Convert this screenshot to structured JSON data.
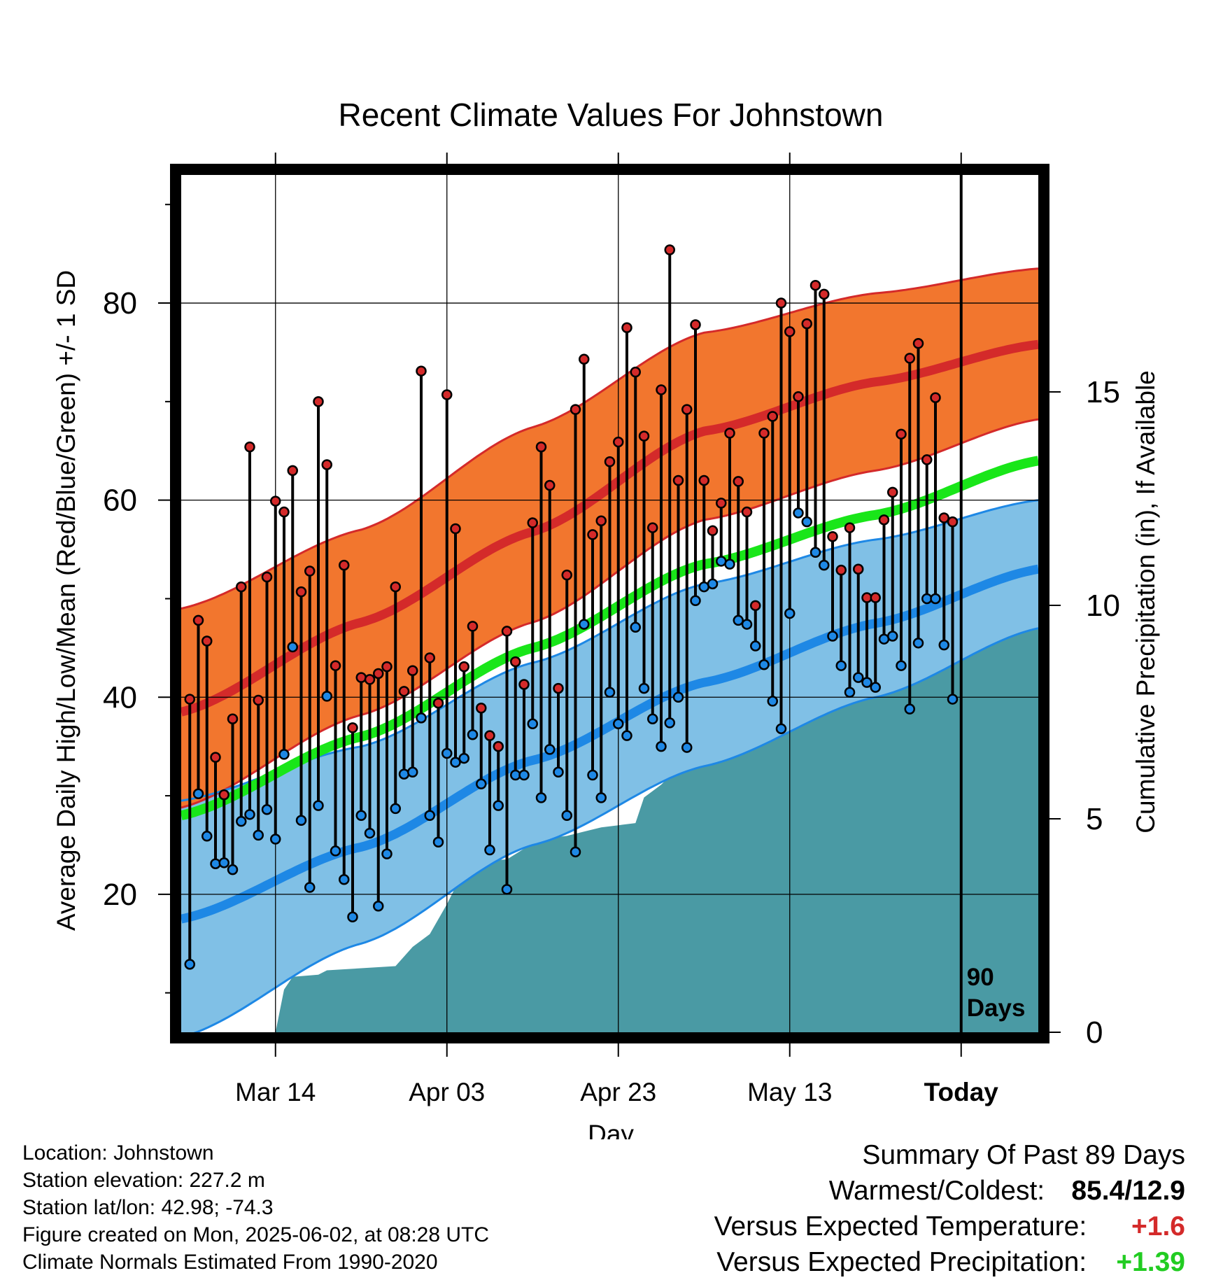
{
  "chart_data": {
    "type": "line",
    "title": "Recent Climate Values For Johnstown",
    "xlabel": "Day",
    "ylabel": "Average Daily High/Low/Mean (Red/Blue/Green) +/- 1 SD",
    "y2label": "Cumulative Precipitation (in), If Available",
    "x_tick_labels": [
      "Mar 14",
      "Apr 03",
      "Apr 23",
      "May 13",
      "Today"
    ],
    "x_tick_days": [
      10,
      30,
      50,
      70,
      90
    ],
    "x_range_days": [
      -1,
      99
    ],
    "ylim": [
      6,
      93
    ],
    "yticks": [
      20,
      40,
      60,
      80
    ],
    "y2lim": [
      0,
      20
    ],
    "y2ticks": [
      0,
      5,
      10,
      15
    ],
    "today_label": "90\nDays",
    "grid": true,
    "normals": {
      "high_mean": [
        [
          -1,
          38.5
        ],
        [
          20,
          47.6
        ],
        [
          40,
          56.8
        ],
        [
          60,
          67.0
        ],
        [
          80,
          72.0
        ],
        [
          99,
          75.8
        ]
      ],
      "high_upper": [
        [
          -1,
          49.0
        ],
        [
          20,
          57.0
        ],
        [
          40,
          67.4
        ],
        [
          60,
          77.0
        ],
        [
          80,
          81.0
        ],
        [
          99,
          83.5
        ]
      ],
      "high_lower": [
        [
          -1,
          28.8
        ],
        [
          20,
          38.2
        ],
        [
          40,
          47.6
        ],
        [
          60,
          58.0
        ],
        [
          80,
          63.0
        ],
        [
          99,
          68.2
        ]
      ],
      "mean": [
        [
          -1,
          28.0
        ],
        [
          20,
          36.0
        ],
        [
          40,
          45.0
        ],
        [
          60,
          53.5
        ],
        [
          80,
          58.5
        ],
        [
          99,
          64.0
        ]
      ],
      "low_mean": [
        [
          -1,
          17.5
        ],
        [
          20,
          24.8
        ],
        [
          40,
          33.6
        ],
        [
          60,
          41.5
        ],
        [
          80,
          47.5
        ],
        [
          99,
          53.0
        ]
      ],
      "low_upper": [
        [
          -1,
          29.5
        ],
        [
          20,
          35.0
        ],
        [
          40,
          43.5
        ],
        [
          60,
          51.5
        ],
        [
          80,
          56.0
        ],
        [
          99,
          60.0
        ]
      ],
      "low_lower": [
        [
          -1,
          5.5
        ],
        [
          20,
          15.0
        ],
        [
          40,
          25.0
        ],
        [
          60,
          33.0
        ],
        [
          80,
          40.0
        ],
        [
          99,
          47.0
        ]
      ]
    },
    "daily_high": [
      39.8,
      47.8,
      45.7,
      33.9,
      30.1,
      37.8,
      51.2,
      65.4,
      39.7,
      52.2,
      59.9,
      58.8,
      63.0,
      50.7,
      52.8,
      70.0,
      63.6,
      43.2,
      53.4,
      36.9,
      42.0,
      41.8,
      42.4,
      43.1,
      51.2,
      40.6,
      42.7,
      73.1,
      44.0,
      39.4,
      70.7,
      57.1,
      43.1,
      47.2,
      38.9,
      36.1,
      35.0,
      46.7,
      43.6,
      41.3,
      57.7,
      65.4,
      61.5,
      40.9,
      52.4,
      69.2,
      74.3,
      56.5,
      57.9,
      63.9,
      65.9,
      77.5,
      73.0,
      66.5,
      57.2,
      71.2,
      85.4,
      62.0,
      69.2,
      77.8,
      62.0,
      56.9,
      59.7,
      66.8,
      61.9,
      58.8,
      49.3,
      66.8,
      68.5,
      80.0,
      77.1,
      70.5,
      77.9,
      81.8,
      80.9,
      56.3,
      52.9,
      57.2,
      53.0,
      50.1,
      50.1,
      58.0,
      60.8,
      66.7,
      74.4,
      75.9,
      64.1,
      70.4,
      58.2,
      57.8
    ],
    "daily_low": [
      12.9,
      30.2,
      25.9,
      23.1,
      23.2,
      22.5,
      27.4,
      28.1,
      26.0,
      28.6,
      25.6,
      34.2,
      45.1,
      27.5,
      20.7,
      29.0,
      40.1,
      24.4,
      21.5,
      17.7,
      28.0,
      26.2,
      18.8,
      24.1,
      28.7,
      32.2,
      32.4,
      37.9,
      28.0,
      25.3,
      34.3,
      33.4,
      33.8,
      36.2,
      31.2,
      24.5,
      29.0,
      20.5,
      32.1,
      32.1,
      37.3,
      29.8,
      34.7,
      32.4,
      28.0,
      24.3,
      47.4,
      32.1,
      29.8,
      40.5,
      37.3,
      36.1,
      47.1,
      40.9,
      37.8,
      35.0,
      37.4,
      40.0,
      34.9,
      49.8,
      51.2,
      51.5,
      53.8,
      53.5,
      47.8,
      47.4,
      45.2,
      43.3,
      39.6,
      36.8,
      48.5,
      58.7,
      57.8,
      54.7,
      53.4,
      46.2,
      43.2,
      40.5,
      42.0,
      41.5,
      41.0,
      45.9,
      46.2,
      43.2,
      38.8,
      45.5,
      50.0,
      50.0,
      45.3,
      39.8
    ],
    "cumulative_precip": [
      [
        10,
        0.0
      ],
      [
        11,
        1.0
      ],
      [
        12,
        1.3
      ],
      [
        15,
        1.35
      ],
      [
        16,
        1.45
      ],
      [
        24,
        1.55
      ],
      [
        26,
        2.0
      ],
      [
        28,
        2.3
      ],
      [
        30,
        3.0
      ],
      [
        31,
        3.4
      ],
      [
        32,
        3.7
      ],
      [
        33,
        4.0
      ],
      [
        37,
        4.05
      ],
      [
        39,
        4.3
      ],
      [
        40,
        4.5
      ],
      [
        44,
        4.6
      ],
      [
        46,
        4.7
      ],
      [
        48,
        4.8
      ],
      [
        50,
        4.85
      ],
      [
        52,
        4.9
      ],
      [
        53,
        5.5
      ],
      [
        55,
        5.8
      ],
      [
        57,
        6.2
      ],
      [
        59,
        6.4
      ],
      [
        61,
        6.8
      ],
      [
        62,
        7.2
      ],
      [
        63,
        7.5
      ],
      [
        64,
        7.8
      ],
      [
        65,
        8.0
      ],
      [
        67,
        9.0
      ],
      [
        69,
        9.5
      ],
      [
        72,
        9.5
      ],
      [
        74,
        9.6
      ],
      [
        76,
        9.8
      ],
      [
        78,
        9.9
      ],
      [
        80,
        10.2
      ],
      [
        84,
        10.3
      ],
      [
        87,
        10.4
      ],
      [
        88,
        11.2
      ],
      [
        90,
        11.2
      ],
      [
        99,
        11.2
      ]
    ]
  },
  "info": {
    "location": "Location: Johnstown",
    "elevation": "Station elevation: 227.2 m",
    "latlon": "Station lat/lon: 42.98; -74.3",
    "created": "Figure created on Mon, 2025-06-02, at 08:28 UTC",
    "normals": "Climate Normals Estimated From 1990-2020"
  },
  "summary": {
    "title": "Summary Of Past 89 Days",
    "warmest_label": "Warmest/Coldest:",
    "warmest_value": "85.4/12.9",
    "temp_label": "Versus Expected Temperature:",
    "temp_value": "+1.6",
    "precip_label": "Versus Expected Precipitation:",
    "precip_value": "+1.39"
  },
  "colors": {
    "high_band": "#f2762e",
    "high_line": "#d42a2a",
    "low_band": "#80c0e6",
    "low_line": "#1e88e5",
    "mean_line": "#19e619",
    "precip": "#4a9aa4",
    "positive_temp": "#d42a2a",
    "positive_precip": "#22cc22"
  }
}
